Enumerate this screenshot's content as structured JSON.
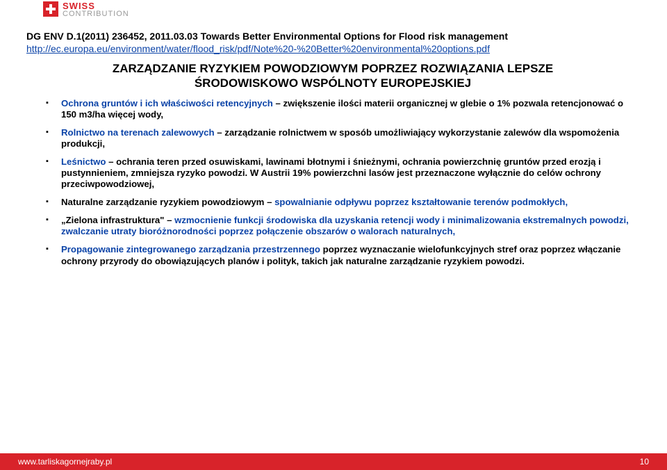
{
  "logo": {
    "line1": "SWISS",
    "line2": "CONTRIBUTION"
  },
  "doc_ref": "DG ENV D.1(2011) 236452, 2011.03.03 Towards Better Environmental Options for Flood risk management",
  "doc_link": "http://ec.europa.eu/environment/water/flood_risk/pdf/Note%20-%20Better%20environmental%20options.pdf",
  "title_l1": "ZARZĄDZANIE RYZYKIEM POWODZIOWYM POPRZEZ ROZWIĄZANIA LEPSZE",
  "title_l2": "ŚRODOWISKOWO WSPÓLNOTY EUROPEJSKIEJ",
  "bullets": [
    {
      "blue": " Ochrona gruntów i ich właściwości retencyjnych",
      "black": " – zwiększenie ilości materii organicznej w glebie o 1% pozwala retencjonować o 150 m3/ha więcej wody,"
    },
    {
      "blue": " Rolnictwo na terenach zalewowych",
      "black": " – zarządzanie rolnictwem w sposób umożliwiający wykorzystanie zalewów dla wspomożenia produkcji,"
    },
    {
      "blue": " Leśnictwo",
      "black": " – ochrania teren przed osuwiskami, lawinami błotnymi i śnieżnymi, ochrania powierzchnię gruntów przed erozją i pustynnieniem, zmniejsza ryzyko powodzi. W Austrii 19% powierzchni lasów jest przeznaczone wyłącznie do celów ochrony przeciwpowodziowej,"
    },
    {
      "blue_pre": " Naturalne zarządzanie ryzykiem powodziowym – ",
      "blue": "spowalnianie odpływu poprzez kształtowanie terenów podmokłych,",
      "black": "",
      "swap": true
    },
    {
      "blue_pre": " „Zielona infrastruktura\" – ",
      "blue": "wzmocnienie funkcji środowiska dla uzyskania retencji wody i minimalizowania ekstremalnych powodzi, zwalczanie utraty bioróżnorodności poprzez połączenie obszarów o walorach naturalnych,",
      "black": "",
      "swap": true
    },
    {
      "blue": " Propagowanie zintegrowanego zarządzania przestrzennego",
      "black": " poprzez wyznaczanie wielofunkcyjnych stref oraz poprzez włączanie ochrony przyrody do obowiązujących planów i polityk, takich jak naturalne zarządzanie ryzykiem powodzi."
    }
  ],
  "footer": {
    "url": "www.tarliskagornejraby.pl",
    "page": "10"
  }
}
